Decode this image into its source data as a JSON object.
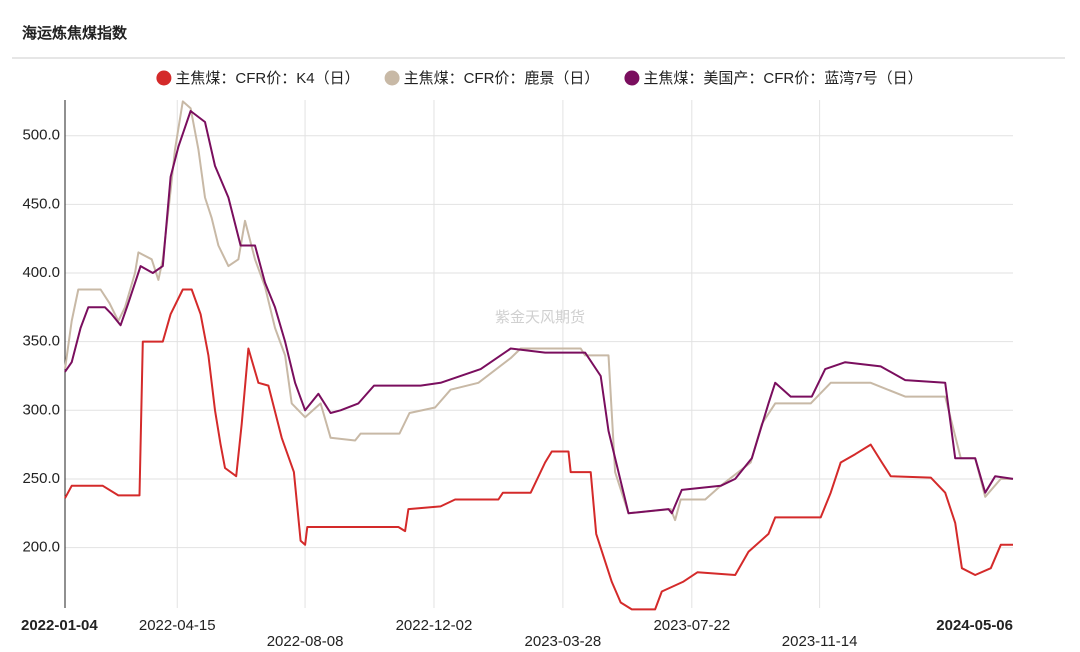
{
  "chart_data": {
    "type": "line",
    "title": "海运炼焦煤指数",
    "watermark": "紫金天风期货",
    "xlim": [
      "2022-01-04",
      "2024-05-06"
    ],
    "xticks": [
      "2022-01-04",
      "2022-04-15",
      "2022-08-08",
      "2022-12-02",
      "2023-03-28",
      "2023-07-22",
      "2023-11-14",
      "2024-05-06"
    ],
    "ylim": [
      156,
      526
    ],
    "yticks": [
      {
        "value": 200,
        "label": "200.0"
      },
      {
        "value": 250,
        "label": "250.0"
      },
      {
        "value": 300,
        "label": "300.0"
      },
      {
        "value": 350,
        "label": "350.0"
      },
      {
        "value": 400,
        "label": "400.0"
      },
      {
        "value": 450,
        "label": "450.0"
      },
      {
        "value": 500,
        "label": "500.0"
      }
    ],
    "grid": true,
    "series": [
      {
        "name": "主焦煤：CFR价：K4（日）",
        "color": "#d42a2a",
        "x": [
          "2022-01-04",
          "2022-01-10",
          "2022-02-07",
          "2022-02-21",
          "2022-03-12",
          "2022-03-15",
          "2022-04-02",
          "2022-04-09",
          "2022-04-20",
          "2022-04-28",
          "2022-05-06",
          "2022-05-13",
          "2022-05-19",
          "2022-05-24",
          "2022-05-28",
          "2022-06-07",
          "2022-06-12",
          "2022-06-18",
          "2022-06-27",
          "2022-07-06",
          "2022-07-18",
          "2022-07-29",
          "2022-08-04",
          "2022-08-08",
          "2022-08-10",
          "2022-10-31",
          "2022-11-06",
          "2022-11-09",
          "2022-12-08",
          "2022-12-21",
          "2023-01-29",
          "2023-02-02",
          "2023-02-27",
          "2023-03-12",
          "2023-03-18",
          "2023-04-02",
          "2023-04-04",
          "2023-04-22",
          "2023-04-27",
          "2023-05-11",
          "2023-05-19",
          "2023-05-29",
          "2023-06-19",
          "2023-06-25",
          "2023-07-14",
          "2023-07-27",
          "2023-08-30",
          "2023-09-11",
          "2023-09-29",
          "2023-10-05",
          "2023-10-17",
          "2023-10-28",
          "2023-11-15",
          "2023-11-24",
          "2023-12-03",
          "2023-12-16",
          "2023-12-30",
          "2024-01-09",
          "2024-01-17",
          "2024-02-22",
          "2024-03-06",
          "2024-03-15",
          "2024-03-21",
          "2024-04-02",
          "2024-04-16",
          "2024-04-25",
          "2024-05-06"
        ],
        "values": [
          236,
          245,
          245,
          238,
          238,
          350,
          350,
          370,
          388,
          388,
          370,
          340,
          300,
          275,
          258,
          252,
          290,
          345,
          320,
          318,
          280,
          255,
          205,
          202,
          215,
          215,
          212,
          228,
          230,
          235,
          235,
          240,
          240,
          262,
          270,
          270,
          255,
          255,
          210,
          175,
          160,
          155,
          155,
          168,
          175,
          182,
          180,
          197,
          210,
          222,
          222,
          222,
          222,
          240,
          262,
          268,
          275,
          262,
          252,
          251,
          240,
          218,
          185,
          180,
          185,
          202,
          202
        ]
      },
      {
        "name": "主焦煤：CFR价：鹿景（日）",
        "color": "#c8b9a6",
        "x": [
          "2022-01-04",
          "2022-01-10",
          "2022-01-16",
          "2022-02-05",
          "2022-02-13",
          "2022-02-21",
          "2022-02-27",
          "2022-03-08",
          "2022-03-11",
          "2022-03-23",
          "2022-03-29",
          "2022-04-02",
          "2022-04-09",
          "2022-04-13",
          "2022-04-20",
          "2022-04-27",
          "2022-05-04",
          "2022-05-10",
          "2022-05-16",
          "2022-05-22",
          "2022-05-31",
          "2022-06-09",
          "2022-06-15",
          "2022-06-24",
          "2022-07-03",
          "2022-07-12",
          "2022-07-21",
          "2022-07-27",
          "2022-08-08",
          "2022-08-22",
          "2022-08-31",
          "2022-09-22",
          "2022-09-27",
          "2022-11-01",
          "2022-11-10",
          "2022-12-03",
          "2022-12-17",
          "2023-01-11",
          "2023-02-09",
          "2023-02-18",
          "2023-04-13",
          "2023-04-17",
          "2023-05-08",
          "2023-05-14",
          "2023-05-26",
          "2023-07-03",
          "2023-07-07",
          "2023-07-12",
          "2023-08-03",
          "2023-08-17",
          "2023-09-13",
          "2023-09-23",
          "2023-10-05",
          "2023-11-06",
          "2023-11-24",
          "2023-12-30",
          "2024-01-30",
          "2024-03-06",
          "2024-03-20",
          "2024-04-02",
          "2024-04-11",
          "2024-04-25",
          "2024-05-06"
        ],
        "values": [
          330,
          365,
          388,
          388,
          378,
          365,
          375,
          400,
          415,
          410,
          395,
          410,
          460,
          490,
          525,
          520,
          490,
          455,
          440,
          420,
          405,
          410,
          438,
          410,
          390,
          360,
          340,
          305,
          295,
          305,
          280,
          278,
          283,
          283,
          298,
          302,
          315,
          320,
          338,
          345,
          345,
          340,
          340,
          255,
          225,
          228,
          220,
          235,
          235,
          245,
          262,
          290,
          305,
          305,
          320,
          320,
          310,
          310,
          265,
          265,
          237,
          250,
          250
        ]
      },
      {
        "name": "主焦煤：美国产：CFR价：蓝湾7号（日）",
        "color": "#7a0e5e",
        "x": [
          "2022-01-04",
          "2022-01-10",
          "2022-01-18",
          "2022-01-25",
          "2022-02-09",
          "2022-02-15",
          "2022-02-23",
          "2022-03-02",
          "2022-03-13",
          "2022-03-24",
          "2022-04-02",
          "2022-04-09",
          "2022-04-16",
          "2022-04-27",
          "2022-05-10",
          "2022-05-19",
          "2022-05-31",
          "2022-06-11",
          "2022-06-24",
          "2022-07-03",
          "2022-07-12",
          "2022-07-21",
          "2022-07-30",
          "2022-08-08",
          "2022-08-20",
          "2022-08-31",
          "2022-09-09",
          "2022-09-25",
          "2022-10-09",
          "2022-11-20",
          "2022-12-08",
          "2023-01-13",
          "2023-02-09",
          "2023-03-12",
          "2023-04-17",
          "2023-05-01",
          "2023-05-08",
          "2023-05-26",
          "2023-07-01",
          "2023-07-04",
          "2023-07-13",
          "2023-08-17",
          "2023-08-30",
          "2023-09-14",
          "2023-09-29",
          "2023-10-05",
          "2023-10-19",
          "2023-11-07",
          "2023-11-19",
          "2023-12-07",
          "2024-01-08",
          "2024-01-30",
          "2024-03-06",
          "2024-03-15",
          "2024-04-02",
          "2024-04-11",
          "2024-04-20",
          "2024-05-06"
        ],
        "values": [
          328,
          335,
          360,
          375,
          375,
          370,
          362,
          378,
          405,
          400,
          405,
          470,
          492,
          518,
          510,
          478,
          455,
          420,
          420,
          393,
          375,
          350,
          320,
          300,
          312,
          298,
          300,
          305,
          318,
          318,
          320,
          330,
          345,
          342,
          342,
          325,
          285,
          225,
          228,
          225,
          242,
          245,
          250,
          265,
          305,
          320,
          310,
          310,
          330,
          335,
          332,
          322,
          320,
          265,
          265,
          240,
          252,
          250
        ]
      }
    ]
  }
}
